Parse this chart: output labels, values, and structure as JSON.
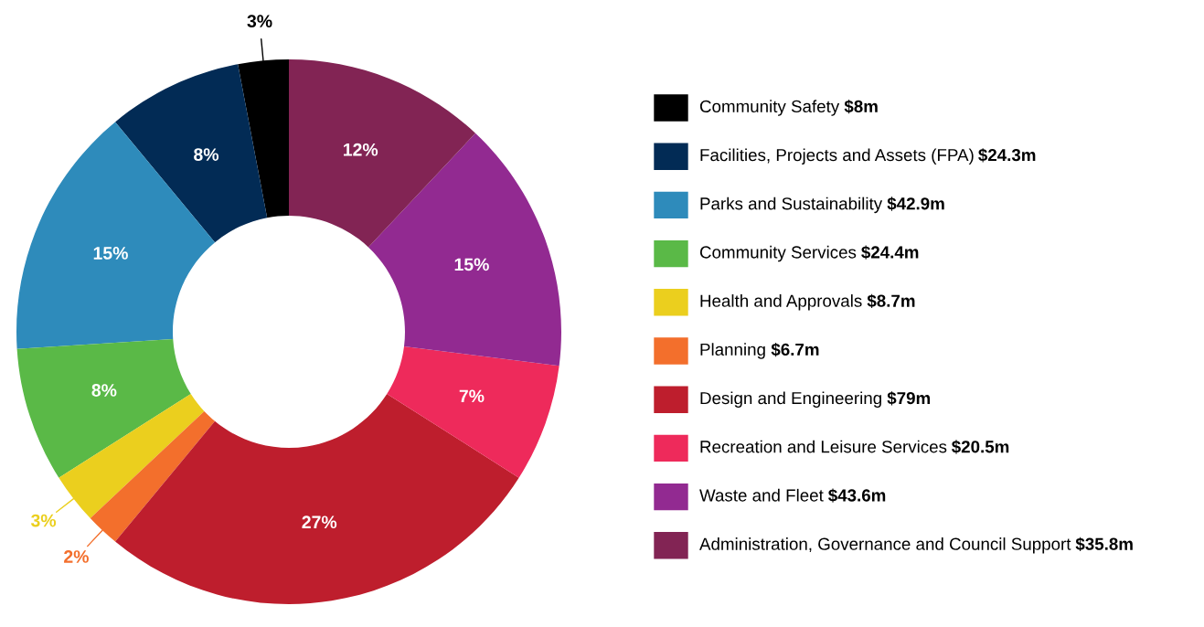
{
  "chart_data": {
    "type": "donut",
    "categories": [
      "Community Safety $8m",
      "Facilities, Projects and Assets (FPA) $24.3m",
      "Parks and Sustainability $42.9m",
      "Community Services $24.4m",
      "Health and Approvals $8.7m",
      "Planning $6.7m",
      "Design and Engineering $79m",
      "Recreation and Leisure Services $20.5m",
      "Waste and Fleet $43.6m",
      "Administration, Governance and Council Support $35.8m"
    ],
    "values": [
      3,
      8,
      15,
      8,
      3,
      2,
      27,
      7,
      15,
      12
    ],
    "colors": [
      "#000000",
      "#022b55",
      "#2e8bbb",
      "#5ab947",
      "#ebcf1e",
      "#f36f2c",
      "#be1e2d",
      "#ee2a5b",
      "#922a91",
      "#822454"
    ],
    "value_labels": [
      "3%",
      "8%",
      "15%",
      "8%",
      "3%",
      "2%",
      "27%",
      "7%",
      "15%",
      "12%"
    ],
    "legend": "right"
  }
}
